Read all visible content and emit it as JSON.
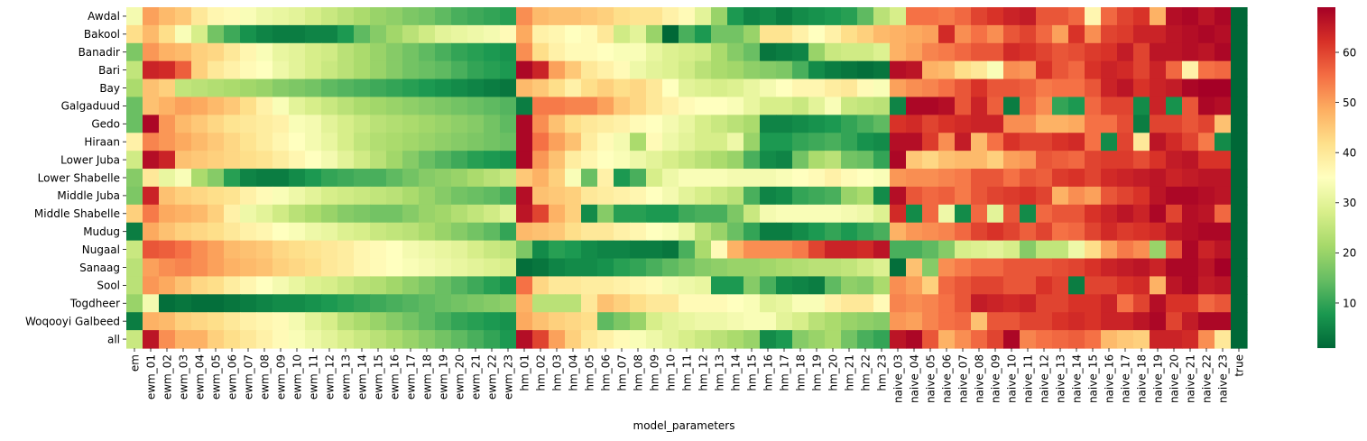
{
  "chart_data": {
    "type": "heatmap",
    "xlabel": "model_parameters",
    "ylabel": "",
    "colormap": "RdYlGn_r",
    "color_low": "#006837",
    "color_mid": "#ffffbf",
    "color_high": "#a50026",
    "vmin": 1,
    "vmax": 69,
    "colorbar_ticks": [
      10,
      20,
      30,
      40,
      50,
      60
    ],
    "rows": [
      "Awdal",
      "Bakool",
      "Banadir",
      "Bari",
      "Bay",
      "Galgaduud",
      "Gedo",
      "Hiraan",
      "Lower Juba",
      "Lower Shabelle",
      "Middle Juba",
      "Middle Shabelle",
      "Mudug",
      "Nugaal",
      "Sanaag",
      "Sool",
      "Togdheer",
      "Woqooyi Galbeed",
      "all"
    ],
    "columns": [
      "em",
      "ewm_01",
      "ewm_02",
      "ewm_03",
      "ewm_04",
      "ewm_05",
      "ewm_06",
      "ewm_07",
      "ewm_08",
      "ewm_09",
      "ewm_10",
      "ewm_11",
      "ewm_12",
      "ewm_13",
      "ewm_14",
      "ewm_15",
      "ewm_16",
      "ewm_17",
      "ewm_18",
      "ewm_19",
      "ewm_20",
      "ewm_21",
      "ewm_22",
      "ewm_23",
      "hm_01",
      "hm_02",
      "hm_03",
      "hm_04",
      "hm_05",
      "hm_06",
      "hm_07",
      "hm_08",
      "hm_09",
      "hm_10",
      "hm_11",
      "hm_12",
      "hm_13",
      "hm_14",
      "hm_15",
      "hm_16",
      "hm_17",
      "hm_18",
      "hm_19",
      "hm_20",
      "hm_21",
      "hm_22",
      "hm_23",
      "naive_03",
      "naive_04",
      "naive_05",
      "naive_06",
      "naive_07",
      "naive_08",
      "naive_09",
      "naive_10",
      "naive_11",
      "naive_12",
      "naive_13",
      "naive_14",
      "naive_15",
      "naive_16",
      "naive_17",
      "naive_18",
      "naive_19",
      "naive_20",
      "naive_21",
      "naive_22",
      "naive_23",
      "true"
    ],
    "values": [
      [
        33,
        50,
        47,
        45,
        40,
        37,
        36,
        34,
        32,
        31,
        30,
        28,
        26,
        24,
        22,
        20,
        19,
        17,
        16,
        14,
        12,
        11,
        10,
        9,
        52,
        47,
        46,
        46,
        45,
        44,
        42,
        41,
        41,
        38,
        36,
        30,
        20,
        8,
        5,
        6,
        4,
        6,
        7,
        8,
        9,
        14,
        24,
        28,
        55,
        55,
        54,
        56,
        60,
        62,
        64,
        65,
        58,
        58,
        56,
        37,
        56,
        60,
        62,
        48,
        67,
        68,
        66,
        68,
        1
      ],
      [
        42,
        47,
        42,
        34,
        28,
        16,
        11,
        7,
        5,
        4,
        4,
        5,
        5,
        8,
        14,
        18,
        21,
        24,
        27,
        30,
        31,
        32,
        33,
        36,
        49,
        38,
        37,
        35,
        36,
        40,
        27,
        30,
        20,
        1,
        12,
        8,
        16,
        16,
        20,
        41,
        41,
        38,
        35,
        38,
        42,
        44,
        47,
        48,
        49,
        50,
        63,
        52,
        55,
        52,
        58,
        60,
        56,
        50,
        62,
        52,
        60,
        61,
        64,
        64,
        66,
        67,
        68,
        67,
        1
      ],
      [
        17,
        51,
        48,
        47,
        44,
        43,
        40,
        37,
        34,
        31,
        30,
        28,
        27,
        24,
        22,
        20,
        18,
        16,
        14,
        12,
        10,
        9,
        8,
        7,
        52,
        42,
        38,
        36,
        36,
        35,
        34,
        34,
        31,
        29,
        28,
        27,
        22,
        18,
        15,
        3,
        4,
        5,
        20,
        26,
        27,
        27,
        29,
        48,
        50,
        53,
        54,
        56,
        58,
        58,
        63,
        62,
        60,
        58,
        59,
        61,
        62,
        65,
        60,
        66,
        66,
        67,
        66,
        68,
        1
      ],
      [
        25,
        64,
        63,
        57,
        44,
        40,
        38,
        36,
        35,
        32,
        30,
        28,
        26,
        24,
        22,
        20,
        18,
        16,
        15,
        14,
        12,
        10,
        9,
        8,
        68,
        64,
        50,
        45,
        40,
        38,
        36,
        32,
        30,
        29,
        27,
        24,
        22,
        21,
        19,
        18,
        17,
        12,
        6,
        4,
        3,
        2,
        3,
        67,
        66,
        48,
        47,
        42,
        40,
        34,
        52,
        51,
        62,
        58,
        56,
        62,
        64,
        63,
        60,
        64,
        56,
        38,
        55,
        56,
        1
      ],
      [
        22,
        46,
        44,
        25,
        24,
        23,
        22,
        21,
        20,
        18,
        17,
        16,
        14,
        13,
        12,
        11,
        10,
        9,
        8,
        7,
        6,
        5,
        4,
        3,
        47,
        45,
        42,
        38,
        42,
        44,
        42,
        43,
        40,
        35,
        30,
        29,
        28,
        29,
        31,
        33,
        35,
        37,
        37,
        39,
        40,
        36,
        34,
        50,
        52,
        53,
        55,
        58,
        62,
        58,
        58,
        57,
        54,
        55,
        55,
        58,
        64,
        66,
        62,
        64,
        65,
        68,
        69,
        69,
        1
      ],
      [
        15,
        46,
        48,
        50,
        49,
        47,
        45,
        42,
        38,
        34,
        30,
        28,
        26,
        24,
        22,
        21,
        20,
        19,
        18,
        17,
        16,
        15,
        14,
        13,
        4,
        54,
        54,
        53,
        53,
        50,
        45,
        43,
        40,
        38,
        36,
        35,
        35,
        34,
        31,
        28,
        28,
        26,
        30,
        34,
        26,
        25,
        24,
        5,
        68,
        68,
        67,
        58,
        64,
        57,
        4,
        56,
        52,
        10,
        8,
        56,
        60,
        60,
        6,
        64,
        7,
        58,
        68,
        67,
        1
      ],
      [
        15,
        68,
        51,
        47,
        45,
        43,
        41,
        40,
        39,
        38,
        34,
        33,
        30,
        28,
        26,
        24,
        23,
        22,
        21,
        20,
        19,
        18,
        16,
        14,
        68,
        52,
        46,
        42,
        40,
        39,
        38,
        36,
        35,
        33,
        31,
        28,
        26,
        24,
        22,
        5,
        5,
        6,
        7,
        8,
        10,
        12,
        14,
        62,
        63,
        60,
        62,
        63,
        64,
        64,
        52,
        52,
        48,
        48,
        49,
        55,
        55,
        59,
        4,
        60,
        60,
        58,
        60,
        46,
        1
      ],
      [
        38,
        53,
        51,
        49,
        47,
        45,
        43,
        41,
        39,
        37,
        35,
        33,
        31,
        28,
        25,
        23,
        22,
        21,
        20,
        19,
        18,
        17,
        16,
        15,
        68,
        55,
        50,
        46,
        39,
        36,
        33,
        22,
        36,
        32,
        30,
        28,
        28,
        32,
        20,
        8,
        8,
        10,
        11,
        12,
        10,
        7,
        6,
        67,
        67,
        61,
        52,
        65,
        47,
        55,
        62,
        60,
        60,
        62,
        63,
        55,
        6,
        60,
        40,
        66,
        63,
        60,
        54,
        6,
        1
      ],
      [
        27,
        67,
        64,
        46,
        45,
        44,
        43,
        42,
        41,
        39,
        37,
        35,
        33,
        30,
        27,
        24,
        21,
        18,
        15,
        13,
        11,
        9,
        8,
        7,
        68,
        51,
        46,
        39,
        37,
        35,
        34,
        32,
        30,
        28,
        26,
        24,
        22,
        20,
        12,
        6,
        5,
        16,
        22,
        24,
        16,
        15,
        10,
        68,
        45,
        43,
        46,
        47,
        47,
        44,
        50,
        51,
        58,
        57,
        56,
        60,
        61,
        61,
        59,
        62,
        65,
        66,
        62,
        62,
        1
      ],
      [
        18,
        40,
        31,
        34,
        22,
        18,
        9,
        5,
        4,
        4,
        6,
        8,
        10,
        11,
        12,
        12,
        14,
        16,
        18,
        19,
        20,
        22,
        24,
        26,
        45,
        48,
        44,
        34,
        15,
        38,
        8,
        12,
        28,
        32,
        34,
        34,
        34,
        33,
        33,
        33,
        34,
        35,
        36,
        38,
        36,
        35,
        34,
        51,
        52,
        52,
        53,
        54,
        58,
        58,
        55,
        58,
        57,
        61,
        62,
        60,
        63,
        64,
        65,
        66,
        64,
        65,
        66,
        66,
        1
      ],
      [
        17,
        64,
        46,
        44,
        43,
        42,
        41,
        38,
        36,
        34,
        32,
        30,
        28,
        27,
        26,
        25,
        24,
        22,
        20,
        18,
        16,
        15,
        14,
        12,
        67,
        46,
        45,
        44,
        40,
        39,
        38,
        37,
        35,
        33,
        30,
        28,
        26,
        24,
        12,
        5,
        6,
        10,
        11,
        12,
        20,
        22,
        6,
        67,
        58,
        56,
        57,
        54,
        58,
        60,
        61,
        62,
        60,
        48,
        52,
        50,
        58,
        60,
        62,
        66,
        68,
        68,
        67,
        66,
        1
      ],
      [
        44,
        54,
        49,
        48,
        47,
        44,
        38,
        32,
        30,
        27,
        24,
        22,
        20,
        18,
        17,
        16,
        16,
        18,
        20,
        21,
        23,
        25,
        27,
        30,
        66,
        60,
        48,
        44,
        6,
        18,
        9,
        9,
        8,
        8,
        11,
        12,
        12,
        17,
        26,
        33,
        34,
        34,
        34,
        34,
        33,
        32,
        29,
        63,
        6,
        56,
        32,
        6,
        56,
        30,
        58,
        6,
        56,
        58,
        58,
        62,
        64,
        66,
        64,
        68,
        60,
        67,
        66,
        56,
        1
      ],
      [
        4,
        49,
        46,
        44,
        43,
        42,
        40,
        38,
        37,
        35,
        34,
        32,
        31,
        29,
        28,
        26,
        25,
        24,
        22,
        20,
        18,
        16,
        14,
        10,
        47,
        46,
        45,
        42,
        40,
        40,
        38,
        37,
        35,
        34,
        31,
        24,
        20,
        15,
        10,
        4,
        4,
        6,
        8,
        10,
        8,
        10,
        12,
        48,
        51,
        52,
        53,
        56,
        60,
        62,
        60,
        57,
        60,
        55,
        56,
        60,
        63,
        61,
        62,
        63,
        66,
        67,
        68,
        68,
        1
      ],
      [
        26,
        58,
        57,
        55,
        52,
        50,
        47,
        46,
        45,
        43,
        42,
        41,
        40,
        39,
        37,
        36,
        35,
        33,
        32,
        31,
        30,
        28,
        26,
        25,
        17,
        6,
        9,
        8,
        6,
        5,
        5,
        4,
        4,
        3,
        12,
        22,
        36,
        48,
        52,
        52,
        52,
        54,
        60,
        64,
        64,
        63,
        66,
        12,
        12,
        14,
        18,
        28,
        29,
        30,
        28,
        18,
        25,
        25,
        32,
        42,
        50,
        54,
        52,
        20,
        58,
        68,
        64,
        66,
        1
      ],
      [
        24,
        50,
        52,
        53,
        52,
        50,
        48,
        47,
        46,
        44,
        43,
        42,
        40,
        39,
        37,
        36,
        35,
        34,
        33,
        32,
        31,
        30,
        29,
        28,
        2,
        3,
        5,
        6,
        6,
        7,
        9,
        10,
        12,
        14,
        16,
        18,
        19,
        20,
        20,
        21,
        22,
        23,
        24,
        24,
        25,
        27,
        29,
        2,
        46,
        18,
        52,
        54,
        56,
        56,
        58,
        58,
        58,
        59,
        60,
        62,
        64,
        65,
        66,
        64,
        68,
        68,
        66,
        69,
        1
      ],
      [
        24,
        51,
        49,
        46,
        43,
        42,
        39,
        37,
        35,
        33,
        31,
        29,
        28,
        26,
        24,
        23,
        21,
        19,
        17,
        15,
        13,
        11,
        9,
        7,
        55,
        43,
        40,
        40,
        39,
        39,
        38,
        37,
        36,
        33,
        32,
        31,
        8,
        8,
        18,
        12,
        6,
        5,
        4,
        14,
        19,
        18,
        22,
        52,
        50,
        44,
        56,
        58,
        60,
        60,
        58,
        58,
        62,
        60,
        4,
        60,
        60,
        62,
        63,
        48,
        66,
        68,
        65,
        66,
        1
      ],
      [
        20,
        33,
        2,
        3,
        2,
        2,
        3,
        4,
        5,
        6,
        6,
        7,
        8,
        9,
        10,
        11,
        12,
        13,
        14,
        15,
        16,
        17,
        18,
        19,
        48,
        24,
        24,
        24,
        40,
        46,
        44,
        42,
        40,
        40,
        36,
        36,
        36,
        35,
        34,
        30,
        31,
        34,
        34,
        38,
        40,
        40,
        36,
        53,
        52,
        53,
        55,
        58,
        65,
        64,
        63,
        64,
        60,
        60,
        62,
        62,
        64,
        55,
        60,
        67,
        62,
        62,
        56,
        58,
        1
      ],
      [
        4,
        48,
        47,
        44,
        43,
        42,
        40,
        38,
        37,
        36,
        33,
        30,
        28,
        24,
        22,
        20,
        18,
        16,
        14,
        12,
        10,
        9,
        8,
        7,
        49,
        46,
        44,
        43,
        42,
        14,
        17,
        20,
        28,
        30,
        31,
        32,
        32,
        33,
        34,
        34,
        30,
        28,
        24,
        22,
        20,
        19,
        18,
        51,
        50,
        53,
        55,
        56,
        46,
        58,
        58,
        60,
        60,
        62,
        63,
        62,
        64,
        64,
        66,
        68,
        60,
        65,
        68,
        68,
        1
      ],
      [
        26,
        66,
        52,
        48,
        48,
        44,
        42,
        40,
        38,
        36,
        34,
        32,
        30,
        28,
        26,
        24,
        22,
        20,
        18,
        16,
        14,
        12,
        10,
        8,
        67,
        60,
        50,
        44,
        40,
        38,
        36,
        34,
        32,
        30,
        28,
        26,
        24,
        22,
        20,
        6,
        8,
        18,
        20,
        22,
        16,
        12,
        10,
        66,
        68,
        58,
        48,
        52,
        56,
        60,
        68,
        53,
        55,
        56,
        57,
        55,
        47,
        45,
        44,
        64,
        64,
        63,
        52,
        40,
        1
      ]
    ]
  }
}
